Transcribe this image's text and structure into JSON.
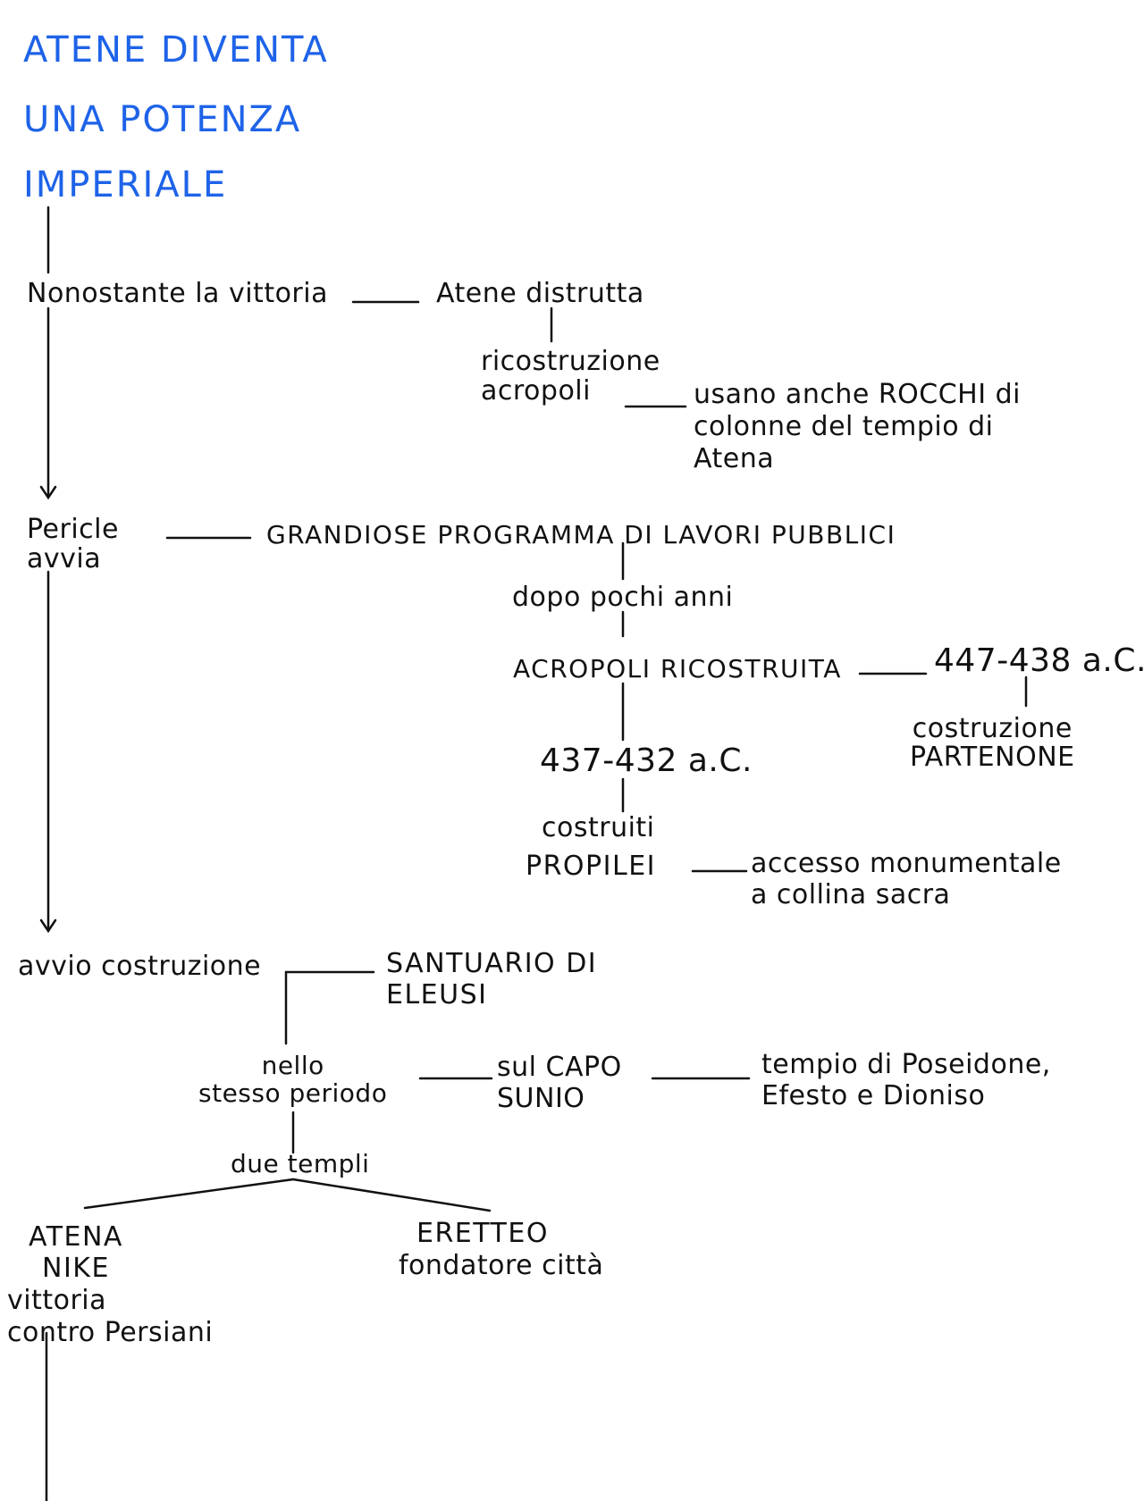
{
  "title": {
    "line1": "ATENE DIVENTA",
    "line2": "UNA POTENZA",
    "line3": "IMPERIALE",
    "color": "#1e63e8"
  },
  "notes": {
    "nonostante": "Nonostante la vittoria",
    "atene_distrutta": "Atene distrutta",
    "ricostruzione_acropoli": "ricostruzione\nacropoli",
    "usano_rocchi": "usano anche ROCCHI di\ncolonne del tempio di\nAtena",
    "pericle": "Pericle\navvia",
    "programma": "GRANDIOSE PROGRAMMA DI LAVORI PUBBLICI",
    "dopo_pochi_anni": "dopo pochi anni",
    "acropoli_ricostruita": "ACROPOLI RICOSTRUITA",
    "date_447": "447-438 a.C.",
    "costruzione_partenone": "costruzione\nPARTENONE",
    "date_437": "437-432 a.C.",
    "costruiti": "costruiti",
    "propilei": "PROPILEI",
    "accesso": "accesso monumentale\na collina sacra",
    "avvio_costruzione": "avvio costruzione",
    "santuario": "SANTUARIO DI\nELEUSI",
    "nello_stesso": "nello\nstesso periodo",
    "sul_capo": "sul CAPO\nSUNIO",
    "tempio_poseidone": "tempio di Poseidone,\nEfesto e Dioniso",
    "due_templi": "due templi",
    "atena_nike": "ATENA\nNIKE",
    "vittoria_contro": "vittoria\ncontro Persiani",
    "eretteo": "ERETTEO",
    "fondatore": "fondatore città"
  }
}
